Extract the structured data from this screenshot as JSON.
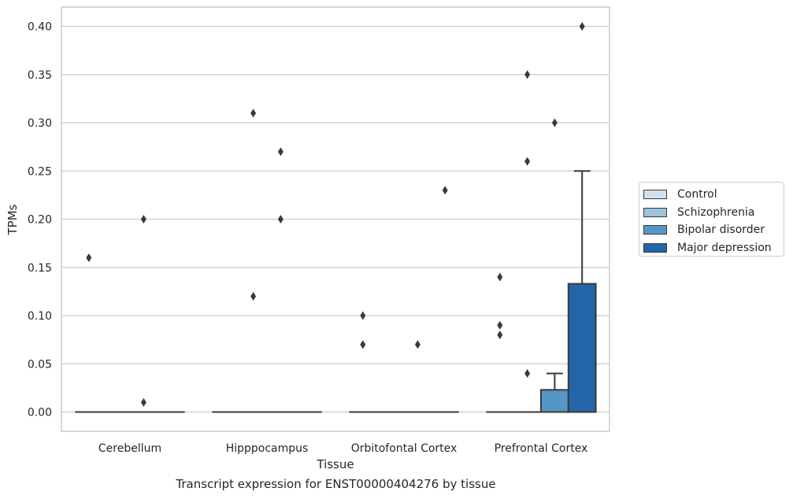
{
  "chart_data": {
    "type": "bar",
    "xlabel": "Tissue",
    "ylabel": "TPMs",
    "caption": "Transcript expression for ENST00000404276 by tissue",
    "categories": [
      "Cerebellum",
      "Hipppocampus",
      "Orbitofontal Cortex",
      "Prefrontal Cortex"
    ],
    "ylim": [
      -0.02,
      0.42
    ],
    "yticks": [
      "0.00",
      "0.05",
      "0.10",
      "0.15",
      "0.20",
      "0.25",
      "0.30",
      "0.35",
      "0.40"
    ],
    "grid": true,
    "legend_position": "right",
    "series": [
      {
        "name": "Control",
        "color": "#d1e1ef",
        "values": [
          0,
          0,
          0,
          0
        ],
        "error_upper": [
          null,
          null,
          null,
          null
        ],
        "outliers": [
          [
            0.16
          ],
          [],
          [
            0.07,
            0.1
          ],
          [
            0.09,
            0.14,
            0.08
          ]
        ]
      },
      {
        "name": "Schizophrenia",
        "color": "#9dc3dd",
        "values": [
          0,
          0,
          0,
          0
        ],
        "error_upper": [
          null,
          null,
          null,
          null
        ],
        "outliers": [
          [],
          [
            0.12,
            0.31
          ],
          [],
          [
            0.04,
            0.26,
            0.35
          ]
        ]
      },
      {
        "name": "Bipolar disorder",
        "color": "#5596c6",
        "values": [
          0,
          0,
          0,
          0.023
        ],
        "error_upper": [
          null,
          null,
          null,
          0.04
        ],
        "outliers": [
          [
            0.2,
            0.01
          ],
          [
            0.27,
            0.2
          ],
          [
            0.07
          ],
          [
            0.3
          ]
        ]
      },
      {
        "name": "Major depression",
        "color": "#2366a8",
        "values": [
          0,
          0,
          0,
          0.133
        ],
        "error_upper": [
          null,
          null,
          null,
          0.25
        ],
        "outliers": [
          [],
          [],
          [
            0.23
          ],
          [
            0.4
          ]
        ]
      }
    ]
  }
}
